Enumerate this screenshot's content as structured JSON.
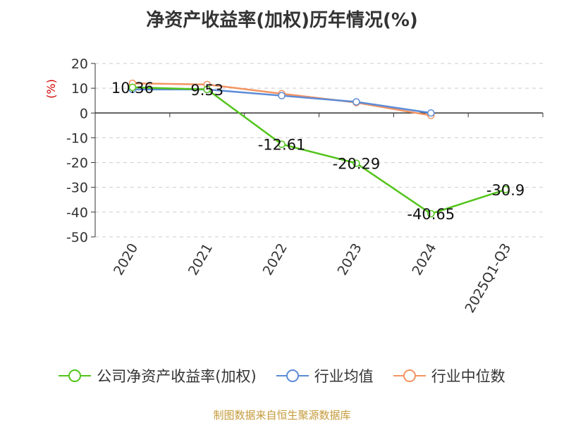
{
  "chart_data": {
    "type": "line",
    "title": "净资产收益率(加权)历年情况(%)",
    "ylabel": "(%)",
    "xlabel": "",
    "categories": [
      "2020",
      "2021",
      "2022",
      "2023",
      "2024",
      "2025Q1-Q3"
    ],
    "ylim": [
      -50,
      20
    ],
    "yticks": [
      20,
      10,
      0,
      -10,
      -20,
      -30,
      -40,
      -50
    ],
    "grid": true,
    "legend_position": "bottom",
    "series": [
      {
        "name": "公司净资产收益率(加权)",
        "color": "#52c41a",
        "values": [
          10.36,
          9.53,
          -12.61,
          -20.29,
          -40.65,
          -30.9
        ],
        "labels": [
          "10.36",
          "9.53",
          "-12.61",
          "-20.29",
          "-40.65",
          "-30.9"
        ]
      },
      {
        "name": "行业均值",
        "color": "#5b8bd6",
        "values": [
          9.5,
          9.5,
          7.0,
          4.5,
          0.0,
          null
        ]
      },
      {
        "name": "行业中位数",
        "color": "#f39463",
        "values": [
          12.0,
          11.5,
          7.8,
          4.2,
          -1.0,
          null
        ]
      }
    ]
  },
  "source": "制图数据来自恒生聚源数据库"
}
